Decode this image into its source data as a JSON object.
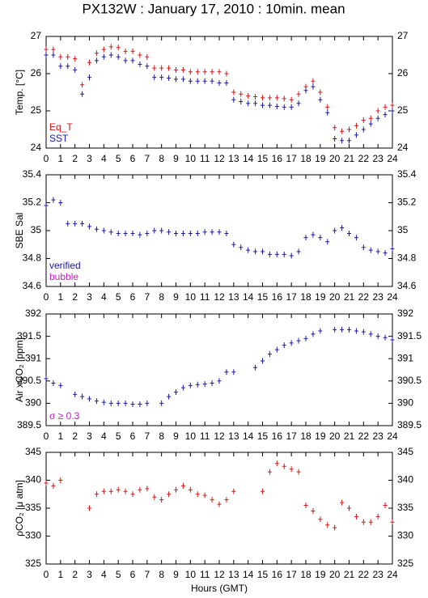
{
  "title": "PX132W : January 17, 2010 : 10min. mean",
  "xlabel": "Hours (GMT)",
  "chart_data": [
    {
      "type": "scatter",
      "ylabel": "Temp. [°C]",
      "xlim": [
        0,
        24
      ],
      "ylim": [
        24,
        27
      ],
      "xticks": [
        0,
        1,
        2,
        3,
        4,
        5,
        6,
        7,
        8,
        9,
        10,
        11,
        12,
        13,
        14,
        15,
        16,
        17,
        18,
        19,
        20,
        21,
        22,
        23,
        24
      ],
      "yticks": [
        24,
        25,
        26,
        27
      ],
      "x": [
        0,
        0.5,
        1,
        1.5,
        2,
        2.5,
        3,
        3.5,
        4,
        4.5,
        5,
        5.5,
        6,
        6.5,
        7,
        7.5,
        8,
        8.5,
        9,
        9.5,
        10,
        10.5,
        11,
        11.5,
        12,
        12.5,
        13,
        13.5,
        14,
        14.5,
        15,
        15.5,
        16,
        16.5,
        17,
        17.5,
        18,
        18.5,
        19,
        19.5,
        20,
        20.5,
        21,
        21.5,
        22,
        22.5,
        23,
        23.5,
        24
      ],
      "series": [
        {
          "name": "Eq_T",
          "color": "#d01818",
          "values": [
            26.65,
            26.65,
            26.45,
            26.45,
            26.4,
            25.7,
            26.3,
            26.55,
            26.65,
            26.72,
            26.7,
            26.6,
            26.6,
            26.5,
            26.45,
            26.15,
            26.15,
            26.15,
            26.1,
            26.1,
            26.05,
            26.05,
            26.05,
            26.05,
            26.05,
            26.0,
            25.5,
            25.45,
            25.4,
            25.38,
            25.35,
            25.35,
            25.35,
            25.33,
            25.3,
            25.45,
            25.65,
            25.8,
            25.5,
            25.1,
            24.55,
            24.45,
            24.5,
            24.6,
            24.75,
            24.8,
            25.0,
            25.1,
            25.15
          ]
        },
        {
          "name": "SST",
          "color": "#1a1aa0",
          "values": [
            26.5,
            26.5,
            26.2,
            26.2,
            26.1,
            25.45,
            25.9,
            26.35,
            26.45,
            26.5,
            26.45,
            26.35,
            26.35,
            26.25,
            26.2,
            25.9,
            25.9,
            25.88,
            25.85,
            25.85,
            25.8,
            25.8,
            25.8,
            25.8,
            25.75,
            25.75,
            25.3,
            25.25,
            25.2,
            25.2,
            25.15,
            25.15,
            25.12,
            25.1,
            25.1,
            25.2,
            25.55,
            25.65,
            25.3,
            24.95,
            24.25,
            24.2,
            24.2,
            24.35,
            24.5,
            24.65,
            24.8,
            24.9,
            25.0
          ]
        }
      ]
    },
    {
      "type": "scatter",
      "ylabel": "SBE Sal",
      "xlim": [
        0,
        24
      ],
      "ylim": [
        34.6,
        35.4
      ],
      "xticks": [
        0,
        1,
        2,
        3,
        4,
        5,
        6,
        7,
        8,
        9,
        10,
        11,
        12,
        13,
        14,
        15,
        16,
        17,
        18,
        19,
        20,
        21,
        22,
        23,
        24
      ],
      "yticks": [
        34.6,
        34.8,
        35,
        35.2,
        35.4
      ],
      "x": [
        0,
        0.5,
        1,
        1.5,
        2,
        2.5,
        3,
        3.5,
        4,
        4.5,
        5,
        5.5,
        6,
        6.5,
        7,
        7.5,
        8,
        8.5,
        9,
        9.5,
        10,
        10.5,
        11,
        11.5,
        12,
        12.5,
        13,
        13.5,
        14,
        14.5,
        15,
        15.5,
        16,
        16.5,
        17,
        17.5,
        18,
        18.5,
        19,
        19.5,
        20,
        20.5,
        21,
        21.5,
        22,
        22.5,
        23,
        23.5,
        24
      ],
      "series": [
        {
          "name": "verified",
          "color": "#1a1aa0",
          "values": [
            35.18,
            35.22,
            35.2,
            35.05,
            35.05,
            35.05,
            35.03,
            35.01,
            35.0,
            34.99,
            34.98,
            34.98,
            34.98,
            34.97,
            34.98,
            35.0,
            35.0,
            34.99,
            34.98,
            34.98,
            34.98,
            34.98,
            34.99,
            34.99,
            34.99,
            34.98,
            34.9,
            34.88,
            34.86,
            34.85,
            34.85,
            34.83,
            34.83,
            34.83,
            34.82,
            34.85,
            34.95,
            34.97,
            34.95,
            34.92,
            35.0,
            35.02,
            34.98,
            34.95,
            34.88,
            34.86,
            34.85,
            34.84,
            34.87
          ]
        }
      ],
      "extra_legend": [
        {
          "name": "bubble",
          "color": "#c020c0"
        }
      ]
    },
    {
      "type": "scatter",
      "ylabel": "Air xCO₂ [ppm]",
      "xlim": [
        0,
        24
      ],
      "ylim": [
        389.5,
        392
      ],
      "xticks": [
        0,
        1,
        2,
        3,
        4,
        5,
        6,
        7,
        8,
        9,
        10,
        11,
        12,
        13,
        14,
        15,
        16,
        17,
        18,
        19,
        20,
        21,
        22,
        23,
        24
      ],
      "yticks": [
        389.5,
        390,
        390.5,
        391,
        391.5,
        392
      ],
      "x": [
        0,
        0.5,
        1,
        1.5,
        2,
        2.5,
        3,
        3.5,
        4,
        4.5,
        5,
        5.5,
        6,
        6.5,
        7,
        7.5,
        8,
        8.5,
        9,
        9.5,
        10,
        10.5,
        11,
        11.5,
        12,
        12.5,
        13,
        13.5,
        14,
        14.5,
        15,
        15.5,
        16,
        16.5,
        17,
        17.5,
        18,
        18.5,
        19,
        19.5,
        20,
        20.5,
        21,
        21.5,
        22,
        22.5,
        23,
        23.5,
        24
      ],
      "series": [
        {
          "color": "#1a1aa0",
          "values": [
            390.55,
            390.45,
            390.4,
            null,
            390.2,
            390.15,
            390.1,
            390.05,
            390.02,
            390.0,
            390.0,
            390.0,
            389.98,
            389.98,
            390.0,
            null,
            390.0,
            390.15,
            390.25,
            390.35,
            390.4,
            390.42,
            390.43,
            390.45,
            390.5,
            390.7,
            390.7,
            null,
            null,
            390.8,
            390.95,
            391.1,
            391.2,
            391.3,
            391.35,
            391.4,
            391.45,
            391.55,
            391.62,
            null,
            391.65,
            391.65,
            391.65,
            391.62,
            391.6,
            391.55,
            391.5,
            391.47,
            391.42
          ]
        }
      ],
      "annotation": {
        "text": "σ ≥ 0.3",
        "color": "#c020c0"
      }
    },
    {
      "type": "scatter",
      "ylabel": "ρCO₂ [μ atm]",
      "xlim": [
        0,
        24
      ],
      "ylim": [
        325,
        345
      ],
      "xticks": [
        0,
        1,
        2,
        3,
        4,
        5,
        6,
        7,
        8,
        9,
        10,
        11,
        12,
        13,
        14,
        15,
        16,
        17,
        18,
        19,
        20,
        21,
        22,
        23,
        24
      ],
      "yticks": [
        325,
        330,
        335,
        340,
        345
      ],
      "x": [
        0,
        0.5,
        1,
        1.5,
        2,
        2.5,
        3,
        3.5,
        4,
        4.5,
        5,
        5.5,
        6,
        6.5,
        7,
        7.5,
        8,
        8.5,
        9,
        9.5,
        10,
        10.5,
        11,
        11.5,
        12,
        12.5,
        13,
        13.5,
        14,
        14.5,
        15,
        15.5,
        16,
        16.5,
        17,
        17.5,
        18,
        18.5,
        19,
        19.5,
        20,
        20.5,
        21,
        21.5,
        22,
        22.5,
        23,
        23.5,
        24
      ],
      "series": [
        {
          "color": "#d01818",
          "values": [
            339.5,
            339,
            340,
            null,
            null,
            null,
            335,
            337.5,
            338,
            338,
            338.3,
            338,
            337.5,
            338.3,
            338.5,
            337,
            336.5,
            337.5,
            338.3,
            339,
            338.3,
            337.5,
            337.3,
            336.5,
            335.7,
            336.5,
            338,
            null,
            null,
            null,
            338,
            341.5,
            343,
            342.5,
            342,
            341.5,
            335.5,
            334.5,
            333,
            332,
            331.5,
            336,
            335,
            333.5,
            332.5,
            332.5,
            333.5,
            335.5,
            332.5
          ]
        }
      ]
    }
  ]
}
